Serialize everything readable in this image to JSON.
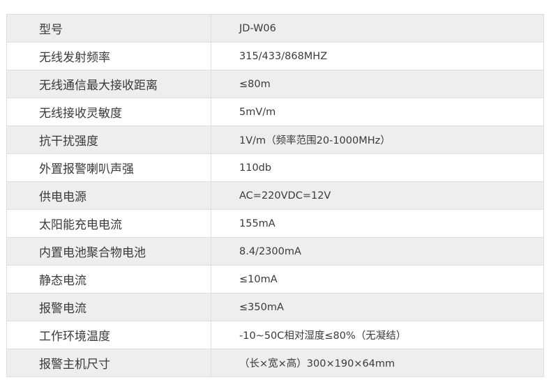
{
  "specs": [
    {
      "label": "型号",
      "value": "JD-W06"
    },
    {
      "label": "无线发射频率",
      "value": "315/433/868MHZ"
    },
    {
      "label": "无线通信最大接收距离",
      "value": "≤80m"
    },
    {
      "label": "无线接收灵敏度",
      "value": "5mV/m"
    },
    {
      "label": "抗干扰强度",
      "value": "1V/m（频率范围20-1000MHz）"
    },
    {
      "label": "外置报警喇叭声强",
      "value": "110db"
    },
    {
      "label": "供电电源",
      "value": "AC=220VDC=12V"
    },
    {
      "label": "太阳能充电电流",
      "value": "155mA"
    },
    {
      "label": "内置电池聚合物电池",
      "value": "8.4/2300mA"
    },
    {
      "label": "静态电流",
      "value": "≤10mA"
    },
    {
      "label": "报警电流",
      "value": "≤350mA"
    },
    {
      "label": "工作环境温度",
      "value": "-10~50C相对湿度≤80%（无凝结）"
    },
    {
      "label": "报警主机尺寸",
      "value": "（长×宽×高）300×190×64mm"
    }
  ]
}
